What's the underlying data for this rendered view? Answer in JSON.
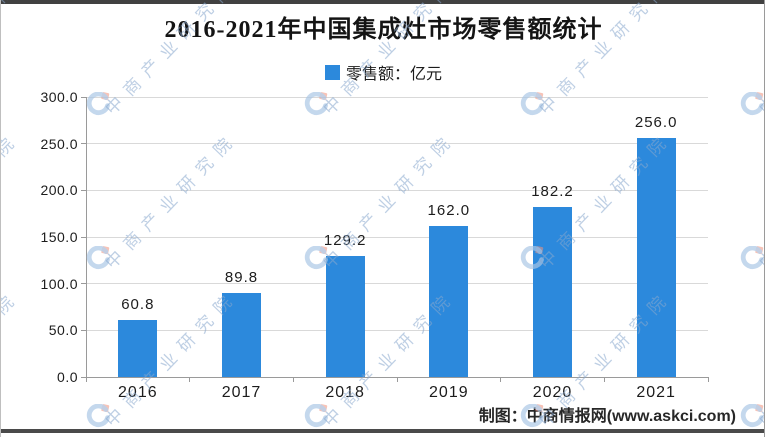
{
  "page": {
    "title": "2016-2021年中国集成灶市场零售额统计",
    "credit": "制图：中商情报网(www.askci.com)"
  },
  "legend": {
    "label": "零售额：亿元"
  },
  "watermark": {
    "text": "中商产业研究院",
    "logo": "askci-crescent-logo"
  },
  "colors": {
    "bar": "#2C89DC",
    "grid": "#d9d9d9",
    "axis": "#9a9a9a",
    "frame": "#414141",
    "watermark_blue": "#a9c6e5",
    "watermark_red": "#f0937d"
  },
  "chart_data": {
    "type": "bar",
    "title": "2016-2021年中国集成灶市场零售额统计",
    "legend_entries": [
      "零售额：亿元"
    ],
    "legend_position": "top",
    "categories": [
      "2016",
      "2017",
      "2018",
      "2019",
      "2020",
      "2021"
    ],
    "values": [
      60.8,
      89.8,
      129.2,
      162.0,
      182.2,
      256.0
    ],
    "value_labels": [
      "60.8",
      "89.8",
      "129.2",
      "162.0",
      "182.2",
      "256.0"
    ],
    "xlabel": "",
    "ylabel": "",
    "ylim": [
      0,
      300
    ],
    "ytick_interval": 50,
    "ytick_labels": [
      "0.0",
      "50.0",
      "100.0",
      "150.0",
      "200.0",
      "250.0",
      "300.0"
    ],
    "grid": true,
    "bar_color": "#2C89DC"
  }
}
